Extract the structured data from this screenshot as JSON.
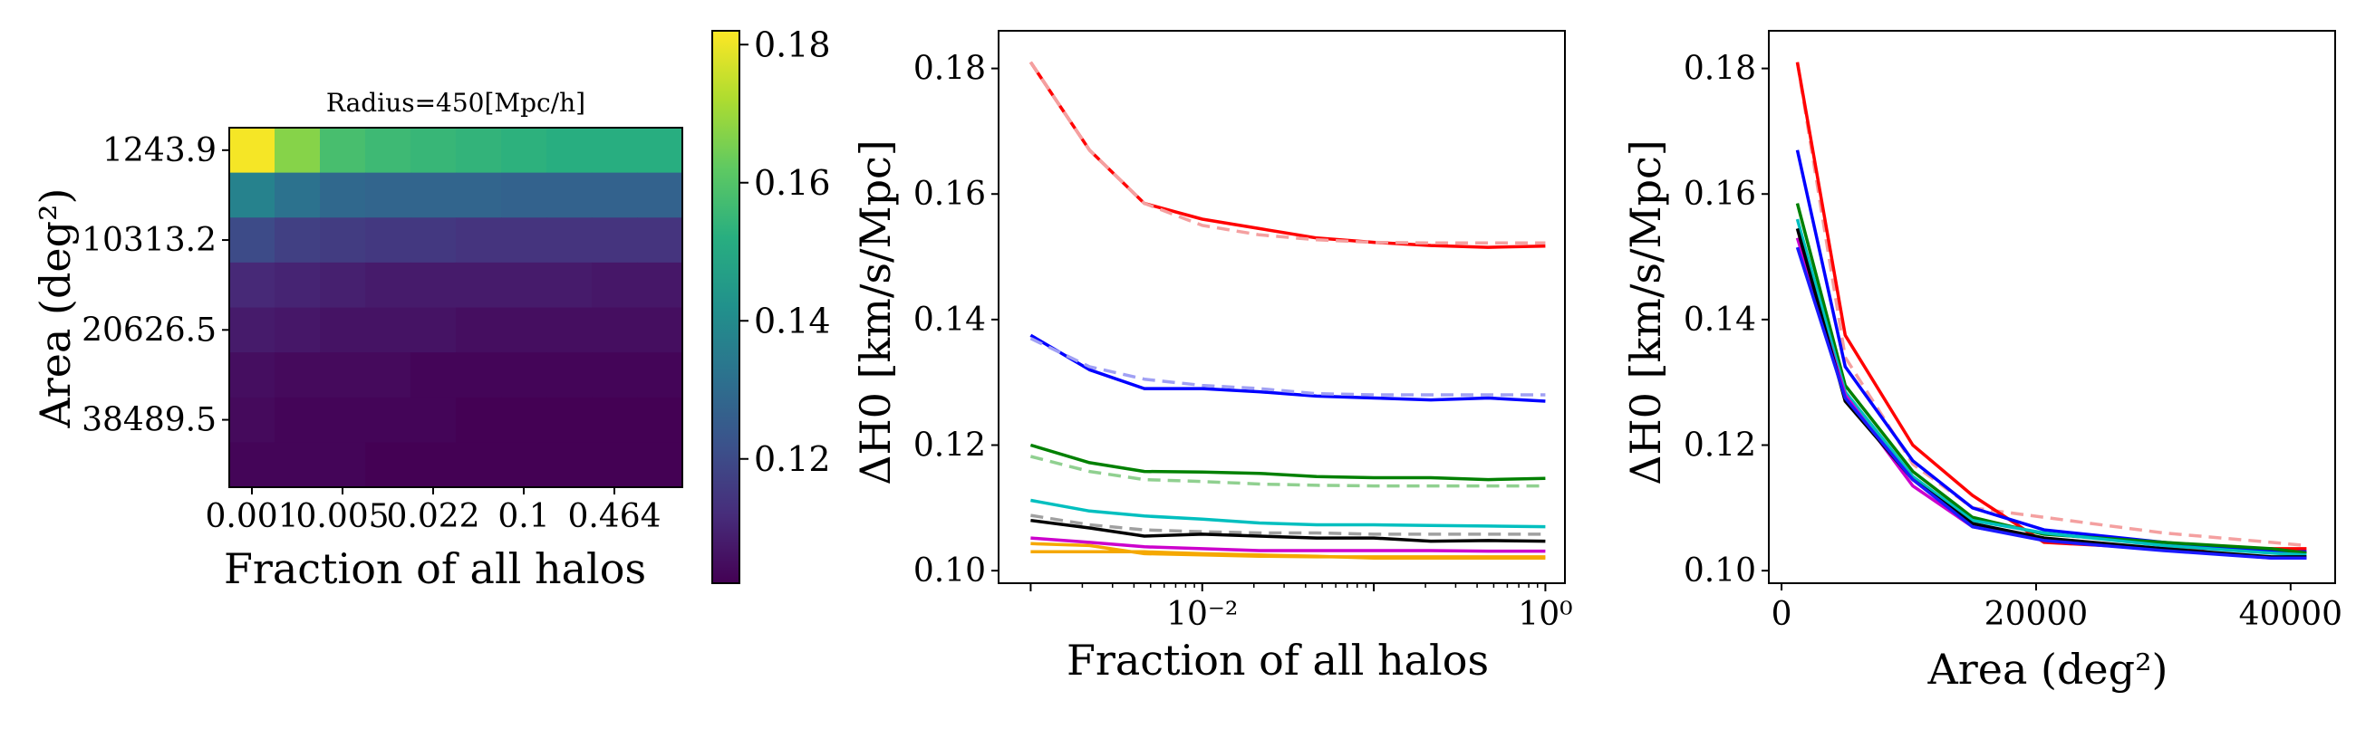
{
  "chart_data": [
    {
      "type": "heatmap",
      "title": "Radius=450[Mpc/h]",
      "xlabel": "Fraction of all halos",
      "ylabel": "Area (deg²)",
      "x_tick_labels": [
        "0.001",
        "0.005",
        "0.022",
        "0.1",
        "0.464"
      ],
      "y_tick_labels": [
        "1243.9",
        "10313.2",
        "20626.5",
        "38489.5"
      ],
      "n_cols": 10,
      "n_rows": 8,
      "values": [
        [
          0.181,
          0.167,
          0.158,
          0.156,
          0.155,
          0.154,
          0.153,
          0.152,
          0.152,
          0.152
        ],
        [
          0.137,
          0.132,
          0.129,
          0.128,
          0.128,
          0.128,
          0.127,
          0.127,
          0.127,
          0.127
        ],
        [
          0.12,
          0.117,
          0.116,
          0.115,
          0.115,
          0.114,
          0.114,
          0.114,
          0.114,
          0.114
        ],
        [
          0.111,
          0.11,
          0.109,
          0.108,
          0.108,
          0.108,
          0.108,
          0.108,
          0.107,
          0.107
        ],
        [
          0.108,
          0.107,
          0.106,
          0.106,
          0.106,
          0.105,
          0.105,
          0.105,
          0.105,
          0.105
        ],
        [
          0.105,
          0.104,
          0.104,
          0.104,
          0.103,
          0.103,
          0.103,
          0.103,
          0.103,
          0.103
        ],
        [
          0.104,
          0.103,
          0.103,
          0.103,
          0.103,
          0.102,
          0.102,
          0.102,
          0.102,
          0.102
        ],
        [
          0.103,
          0.103,
          0.103,
          0.102,
          0.102,
          0.102,
          0.102,
          0.102,
          0.102,
          0.102
        ]
      ],
      "colorbar": {
        "min": 0.102,
        "max": 0.182,
        "ticks": [
          "0.18",
          "0.16",
          "0.14",
          "0.12"
        ],
        "tick_values": [
          0.18,
          0.16,
          0.14,
          0.12
        ]
      }
    },
    {
      "type": "line",
      "xlabel": "Fraction of all halos",
      "ylabel": "ΔH0 [km/s/Mpc]",
      "x_scale": "log",
      "xlim": [
        0.00065,
        1.3
      ],
      "ylim": [
        0.098,
        0.186
      ],
      "x_tick_values": [
        0.01,
        1
      ],
      "x_tick_labels": [
        "10⁻²",
        "10⁰"
      ],
      "y_ticks": [
        0.1,
        0.12,
        0.14,
        0.16,
        0.18
      ],
      "y_tick_labels": [
        "0.10",
        "0.12",
        "0.14",
        "0.16",
        "0.18"
      ],
      "x": [
        0.001,
        0.0022,
        0.0046,
        0.01,
        0.0215,
        0.0464,
        0.1,
        0.215,
        0.464,
        1.0
      ],
      "series": [
        {
          "color": "#ff0000",
          "style": "solid",
          "values": [
            0.181,
            0.167,
            0.1585,
            0.156,
            0.1545,
            0.153,
            0.1523,
            0.1518,
            0.1515,
            0.1517
          ]
        },
        {
          "color": "#f4a0a0",
          "style": "dashed",
          "values": [
            0.181,
            0.167,
            0.1585,
            0.155,
            0.1535,
            0.1527,
            0.1523,
            0.1522,
            0.1522,
            0.1522
          ]
        },
        {
          "color": "#0000ff",
          "style": "solid",
          "values": [
            0.1375,
            0.132,
            0.129,
            0.129,
            0.1285,
            0.1278,
            0.1275,
            0.1272,
            0.1275,
            0.127
          ]
        },
        {
          "color": "#a0a0f4",
          "style": "dashed",
          "values": [
            0.137,
            0.1325,
            0.1305,
            0.1295,
            0.129,
            0.1282,
            0.128,
            0.128,
            0.128,
            0.128
          ]
        },
        {
          "color": "#008000",
          "style": "solid",
          "values": [
            0.12,
            0.1172,
            0.1158,
            0.1157,
            0.1155,
            0.115,
            0.1148,
            0.1148,
            0.1145,
            0.1147
          ]
        },
        {
          "color": "#90d090",
          "style": "dashed",
          "values": [
            0.1182,
            0.1158,
            0.1145,
            0.1142,
            0.1138,
            0.1136,
            0.1135,
            0.1135,
            0.1135,
            0.1135
          ]
        },
        {
          "color": "#00bfbf",
          "style": "solid",
          "values": [
            0.1112,
            0.1095,
            0.1087,
            0.1082,
            0.1076,
            0.1073,
            0.1073,
            0.1072,
            0.1071,
            0.107
          ]
        },
        {
          "color": "#a0a0a0",
          "style": "dashed",
          "values": [
            0.1088,
            0.1073,
            0.1065,
            0.1062,
            0.106,
            0.106,
            0.1058,
            0.1058,
            0.1058,
            0.1058
          ]
        },
        {
          "color": "#000000",
          "style": "solid",
          "values": [
            0.108,
            0.1068,
            0.1055,
            0.1058,
            0.1055,
            0.1052,
            0.1052,
            0.1047,
            0.1048,
            0.1047
          ]
        },
        {
          "color": "#cc00cc",
          "style": "solid",
          "values": [
            0.1052,
            0.1045,
            0.1038,
            0.1035,
            0.1032,
            0.1032,
            0.1032,
            0.1032,
            0.1031,
            0.1031
          ]
        },
        {
          "color": "#f5a800",
          "style": "solid",
          "values": [
            0.1043,
            0.104,
            0.1027,
            0.1025,
            0.1023,
            0.1022,
            0.1022,
            0.1022,
            0.1022,
            0.1022
          ]
        },
        {
          "color": "#f5a800",
          "style": "solid",
          "values": [
            0.103,
            0.103,
            0.103,
            0.1027,
            0.1025,
            0.1023,
            0.102,
            0.102,
            0.102,
            0.102
          ]
        }
      ]
    },
    {
      "type": "line",
      "xlabel": "Area (deg²)",
      "ylabel": "ΔH0 [km/s/Mpc]",
      "xlim": [
        -1000,
        43500
      ],
      "ylim": [
        0.098,
        0.186
      ],
      "x_ticks": [
        0,
        20000,
        40000
      ],
      "x_tick_labels": [
        "0",
        "20000",
        "40000"
      ],
      "y_ticks": [
        0.1,
        0.12,
        0.14,
        0.16,
        0.18
      ],
      "y_tick_labels": [
        "0.10",
        "0.12",
        "0.14",
        "0.16",
        "0.18"
      ],
      "x": [
        1243.9,
        5000,
        10313.2,
        15000,
        20626.5,
        30000,
        38489.5,
        41253
      ],
      "series": [
        {
          "color": "#f4a0a0",
          "style": "dashed",
          "values": [
            0.181,
            0.134,
            0.117,
            0.11,
            0.1085,
            0.106,
            0.1045,
            0.104
          ]
        },
        {
          "color": "#ff0000",
          "style": "solid",
          "values": [
            0.181,
            0.1375,
            0.12,
            0.112,
            0.1045,
            0.1035,
            0.1035,
            0.1035
          ]
        },
        {
          "color": "#0000ff",
          "style": "solid",
          "values": [
            0.167,
            0.1325,
            0.1175,
            0.11,
            0.1065,
            0.1045,
            0.103,
            0.103
          ]
        },
        {
          "color": "#008000",
          "style": "solid",
          "values": [
            0.1585,
            0.1295,
            0.1158,
            0.1085,
            0.1058,
            0.1045,
            0.1035,
            0.1028
          ]
        },
        {
          "color": "#00bfbf",
          "style": "solid",
          "values": [
            0.156,
            0.1285,
            0.115,
            0.108,
            0.106,
            0.104,
            0.1028,
            0.1025
          ]
        },
        {
          "color": "#cc00cc",
          "style": "solid",
          "values": [
            0.153,
            0.128,
            0.1135,
            0.107,
            0.105,
            0.1035,
            0.102,
            0.102
          ]
        },
        {
          "color": "#000000",
          "style": "solid",
          "values": [
            0.1545,
            0.127,
            0.1145,
            0.1075,
            0.1052,
            0.1035,
            0.1022,
            0.1022
          ]
        },
        {
          "color": "#1a1aff",
          "style": "solid",
          "values": [
            0.1515,
            0.1275,
            0.1145,
            0.107,
            0.1048,
            0.1032,
            0.102,
            0.102
          ]
        }
      ]
    }
  ]
}
